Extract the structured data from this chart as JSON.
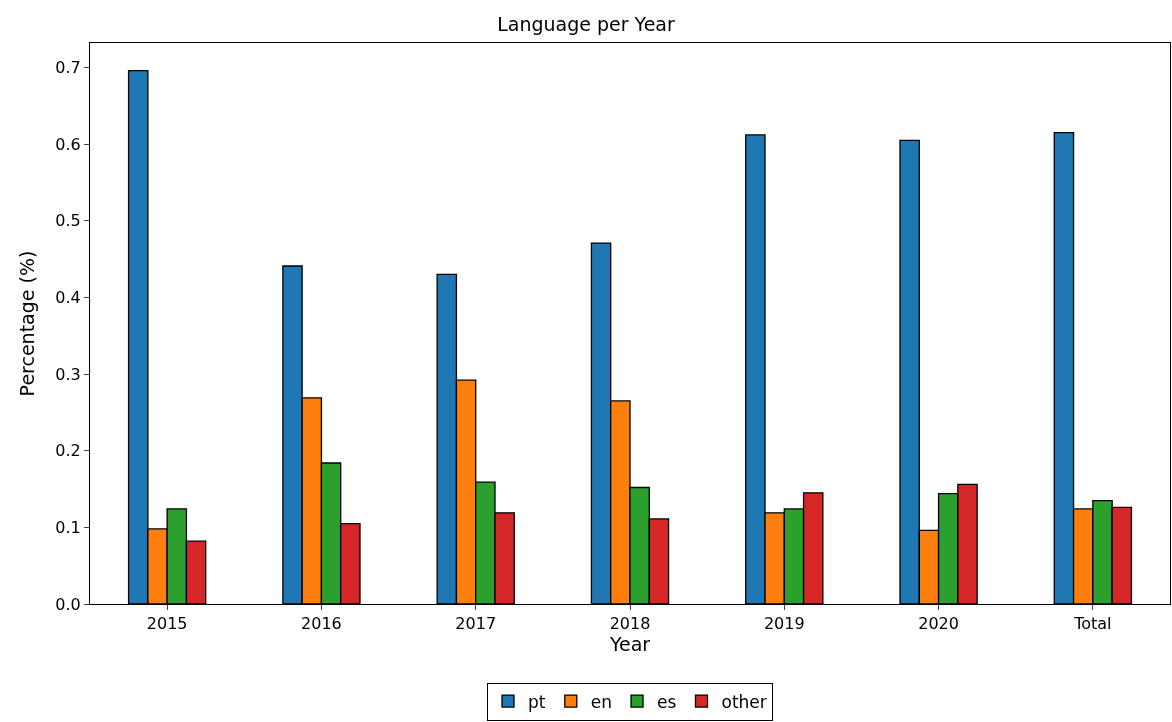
{
  "chart_data": {
    "type": "bar",
    "title": "Language per Year",
    "xlabel": "Year",
    "ylabel": "Percentage (%)",
    "categories": [
      "2015",
      "2016",
      "2017",
      "2018",
      "2019",
      "2020",
      "Total"
    ],
    "series": [
      {
        "name": "pt",
        "color": "#1f77b4",
        "values": [
          0.696,
          0.441,
          0.43,
          0.471,
          0.612,
          0.605,
          0.615
        ]
      },
      {
        "name": "en",
        "color": "#ff7f0e",
        "values": [
          0.098,
          0.269,
          0.292,
          0.265,
          0.119,
          0.096,
          0.124
        ]
      },
      {
        "name": "es",
        "color": "#2ca02c",
        "values": [
          0.124,
          0.184,
          0.159,
          0.152,
          0.124,
          0.144,
          0.135
        ]
      },
      {
        "name": "other",
        "color": "#d62728",
        "values": [
          0.082,
          0.105,
          0.119,
          0.111,
          0.145,
          0.156,
          0.126
        ]
      }
    ],
    "ylim": [
      0,
      0.732
    ],
    "yticks": [
      {
        "value": 0,
        "label": "0.0"
      },
      0.1,
      0.2,
      0.3,
      0.4,
      0.5,
      0.6,
      0.7
    ],
    "grid": false,
    "legend": "bottom"
  }
}
